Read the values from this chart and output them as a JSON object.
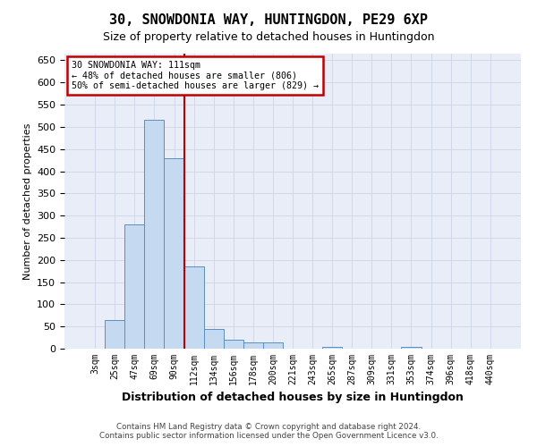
{
  "title": "30, SNOWDONIA WAY, HUNTINGDON, PE29 6XP",
  "subtitle": "Size of property relative to detached houses in Huntingdon",
  "xlabel": "Distribution of detached houses by size in Huntingdon",
  "ylabel": "Number of detached properties",
  "footer_line1": "Contains HM Land Registry data © Crown copyright and database right 2024.",
  "footer_line2": "Contains public sector information licensed under the Open Government Licence v3.0.",
  "bar_labels": [
    "3sqm",
    "25sqm",
    "47sqm",
    "69sqm",
    "90sqm",
    "112sqm",
    "134sqm",
    "156sqm",
    "178sqm",
    "200sqm",
    "221sqm",
    "243sqm",
    "265sqm",
    "287sqm",
    "309sqm",
    "331sqm",
    "353sqm",
    "374sqm",
    "396sqm",
    "418sqm",
    "440sqm"
  ],
  "bar_values": [
    0,
    65,
    280,
    515,
    430,
    185,
    45,
    20,
    15,
    15,
    0,
    0,
    5,
    0,
    0,
    0,
    5,
    0,
    0,
    0,
    0
  ],
  "bar_color": "#c5d9f0",
  "bar_edgecolor": "#5a8fc0",
  "ylim": [
    0,
    665
  ],
  "yticks": [
    0,
    50,
    100,
    150,
    200,
    250,
    300,
    350,
    400,
    450,
    500,
    550,
    600,
    650
  ],
  "grid_color": "#ccd5e8",
  "background_color": "#e8edf8",
  "vline_x_index": 4.5,
  "vline_color": "#c00000",
  "annotation_line1": "30 SNOWDONIA WAY: 111sqm",
  "annotation_line2": "← 48% of detached houses are smaller (806)",
  "annotation_line3": "50% of semi-detached houses are larger (829) →",
  "annotation_box_facecolor": "#ffffff",
  "annotation_box_edgecolor": "#c00000"
}
